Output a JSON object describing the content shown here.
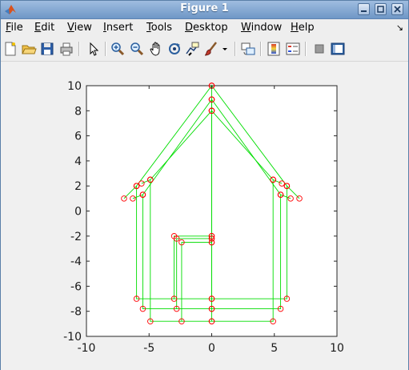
{
  "window": {
    "title": "Figure 1",
    "icon": "matlab-logo-icon",
    "controls": [
      "minimize-icon",
      "maximize-icon",
      "close-icon"
    ]
  },
  "menubar": {
    "items": [
      {
        "label": "File",
        "mnemonic": "F"
      },
      {
        "label": "Edit",
        "mnemonic": "E"
      },
      {
        "label": "View",
        "mnemonic": "V"
      },
      {
        "label": "Insert",
        "mnemonic": "I"
      },
      {
        "label": "Tools",
        "mnemonic": "T"
      },
      {
        "label": "Desktop",
        "mnemonic": "D"
      },
      {
        "label": "Window",
        "mnemonic": "W"
      },
      {
        "label": "Help",
        "mnemonic": "H"
      }
    ],
    "overflow_icon": "dock-arrow-icon"
  },
  "toolbar": {
    "buttons": [
      "new-figure-icon",
      "open-file-icon",
      "save-icon",
      "print-icon",
      "edit-plot-arrow-icon",
      "zoom-in-icon",
      "zoom-out-icon",
      "pan-hand-icon",
      "rotate-3d-icon",
      "data-cursor-icon",
      "brush-icon",
      "brush-dropdown-icon",
      "link-plot-icon",
      "colorbar-icon",
      "legend-icon",
      "hide-plot-tools-icon",
      "show-plot-tools-icon"
    ]
  },
  "chart_data": {
    "type": "line",
    "title": "",
    "xlabel": "",
    "ylabel": "",
    "xlim": [
      -10,
      10
    ],
    "ylim": [
      -10,
      10
    ],
    "xticks": [
      -10,
      -5,
      0,
      5,
      10
    ],
    "yticks": [
      -10,
      -8,
      -6,
      -4,
      -2,
      0,
      2,
      4,
      6,
      8,
      10
    ],
    "xtick_labels": [
      "-10",
      "-5",
      "0",
      "5",
      "10"
    ],
    "ytick_labels": [
      "-10",
      "-8",
      "-6",
      "-4",
      "-2",
      "0",
      "2",
      "4",
      "6",
      "8",
      "10"
    ],
    "grid": false,
    "line_color": "#00dd00",
    "marker": "o",
    "marker_color": "#ff0000",
    "series": [
      {
        "x": [
          -6,
          -6,
          0,
          6,
          6,
          0,
          0,
          -3,
          -3,
          0,
          0,
          0,
          -6,
          -7,
          -6,
          0,
          6,
          7,
          6
        ],
        "y": [
          2,
          -7,
          -7,
          -7,
          2,
          10,
          -2,
          -2,
          -7,
          -7,
          -2,
          10,
          2,
          1,
          2,
          10,
          2,
          1,
          2
        ]
      },
      {
        "x": [
          -5.5,
          -5.5,
          0,
          5.5,
          5.5,
          0,
          0,
          -2.8,
          -2.8,
          0,
          0,
          0,
          -5.5,
          -6.3,
          -5.5,
          0,
          5.5,
          6.3,
          5.5
        ],
        "y": [
          1.3,
          -7.8,
          -7.8,
          -7.8,
          1.3,
          8.9,
          -2.2,
          -2.2,
          -7.8,
          -7.8,
          -2.2,
          8.9,
          1.3,
          1.0,
          1.3,
          8.9,
          1.3,
          1.0,
          1.3
        ]
      },
      {
        "x": [
          -4.9,
          -4.9,
          0,
          4.9,
          4.9,
          0,
          0,
          -2.4,
          -2.4,
          0,
          0,
          0,
          -4.9,
          -5.6,
          -4.9,
          0,
          4.9,
          5.6,
          4.9
        ],
        "y": [
          2.5,
          -8.8,
          -8.8,
          -8.8,
          2.5,
          8.0,
          -2.5,
          -2.5,
          -8.8,
          -8.8,
          -2.5,
          8.0,
          2.5,
          2.2,
          2.5,
          8.0,
          2.5,
          2.2,
          2.5
        ]
      }
    ]
  }
}
